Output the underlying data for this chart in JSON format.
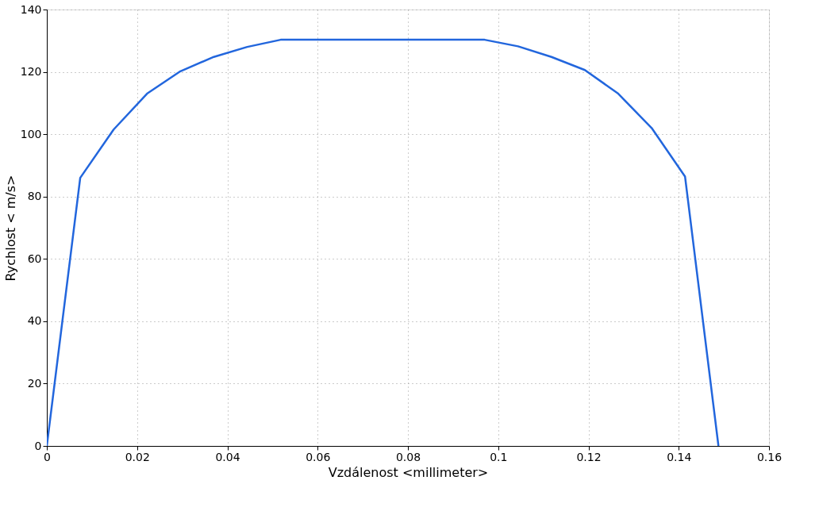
{
  "chart_data": {
    "type": "line",
    "xlabel": "Vzdálenost <millimeter>",
    "ylabel": "Rychlost < m/s>",
    "x": [
      0,
      0.0074,
      0.0148,
      0.0222,
      0.0296,
      0.037,
      0.0444,
      0.0518,
      0.097,
      0.1044,
      0.1118,
      0.1192,
      0.1266,
      0.134,
      0.1414,
      0.1488
    ],
    "series": [
      {
        "color": "#2266dd",
        "values": [
          0,
          86,
          101.5,
          113,
          120.2,
          124.8,
          128,
          130.3,
          130.3,
          128.2,
          124.8,
          120.6,
          113,
          102,
          86.4,
          0
        ]
      }
    ],
    "xlim": [
      0,
      0.16
    ],
    "xticks": [
      0,
      0.02,
      0.04,
      0.06,
      0.08,
      0.1,
      0.12,
      0.14,
      0.16
    ],
    "ylim": [
      0,
      140
    ],
    "yticks": [
      0,
      20,
      40,
      60,
      80,
      100,
      120,
      140
    ],
    "grid": true,
    "marker": "none",
    "line_style": "solid"
  }
}
